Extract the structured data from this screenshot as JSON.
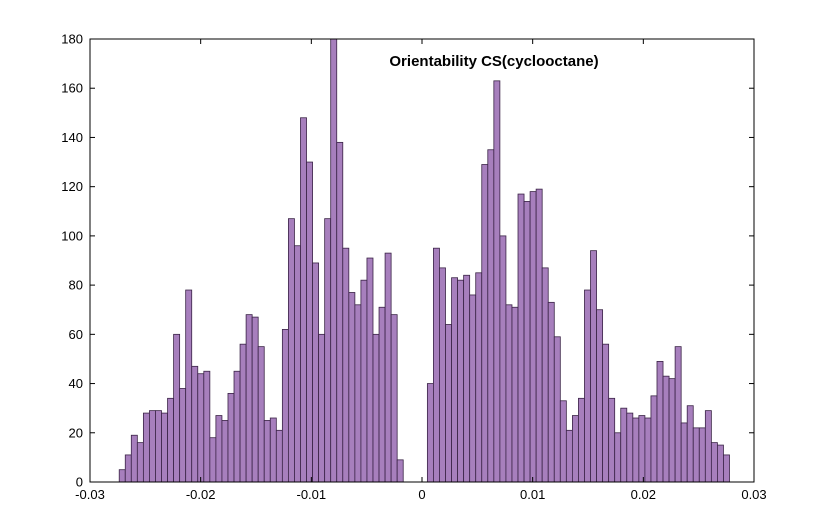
{
  "chart_data": {
    "type": "bar",
    "title": "Orientability CS(cyclooctane)",
    "xlabel": "",
    "ylabel": "",
    "xlim": [
      -0.03,
      0.03
    ],
    "ylim": [
      0,
      180
    ],
    "x_ticks": [
      -0.03,
      -0.02,
      -0.01,
      0,
      0.01,
      0.02,
      0.03
    ],
    "x_tick_labels": [
      "-0.03",
      "-0.02",
      "-0.01",
      "0",
      "0.01",
      "0.02",
      "0.03"
    ],
    "y_ticks": [
      0,
      20,
      40,
      60,
      80,
      100,
      120,
      140,
      160,
      180
    ],
    "y_tick_labels": [
      "0",
      "20",
      "40",
      "60",
      "80",
      "100",
      "120",
      "140",
      "160",
      "180"
    ],
    "bin_start": -0.02736,
    "bin_width": 0.000546,
    "values": [
      5,
      11,
      19,
      16,
      28,
      29,
      29,
      28,
      34,
      60,
      38,
      78,
      47,
      44,
      45,
      18,
      27,
      25,
      36,
      45,
      56,
      68,
      67,
      55,
      25,
      26,
      21,
      62,
      107,
      96,
      148,
      130,
      89,
      60,
      107,
      180,
      138,
      95,
      77,
      72,
      82,
      91,
      60,
      71,
      93,
      68,
      9,
      0,
      0,
      0,
      0,
      40,
      95,
      87,
      64,
      83,
      82,
      84,
      76,
      85,
      129,
      135,
      163,
      100,
      72,
      71,
      117,
      114,
      118,
      119,
      87,
      73,
      59,
      33,
      21,
      27,
      34,
      78,
      94,
      70,
      56,
      34,
      20,
      30,
      28,
      26,
      27,
      26,
      35,
      49,
      43,
      42,
      55,
      24,
      31,
      22,
      22,
      29,
      16,
      15,
      11
    ],
    "colors": {
      "bar_fill": "#a77fbd",
      "bar_edge": "#3a2346",
      "axis": "#000000"
    }
  }
}
